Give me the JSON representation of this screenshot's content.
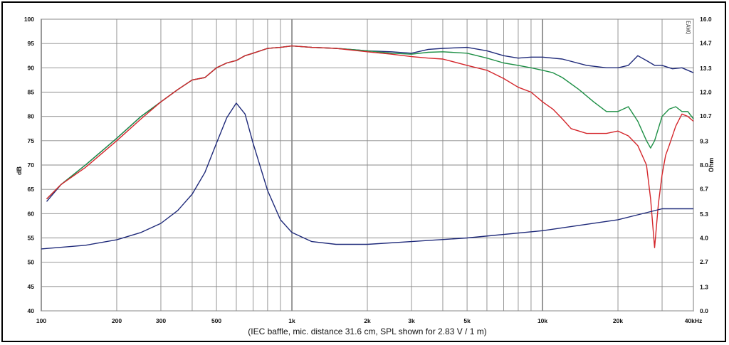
{
  "chart_data": {
    "type": "line",
    "caption": "(IEC baffle, mic. distance 31.6 cm, SPL shown for 2.83 V / 1 m)",
    "logo_text": "EAWQ",
    "xscale": "log",
    "xlim": [
      100,
      40000
    ],
    "x_tick_values": [
      100,
      200,
      300,
      500,
      1000,
      2000,
      3000,
      5000,
      10000,
      20000,
      40000
    ],
    "x_tick_labels": [
      "100",
      "200",
      "300",
      "500",
      "1k",
      "2k",
      "3k",
      "5k",
      "10k",
      "20k",
      "40kHz"
    ],
    "y_left": {
      "label": "dB",
      "lim": [
        40,
        100
      ],
      "ticks": [
        100,
        95,
        90,
        85,
        80,
        75,
        70,
        65,
        60,
        55,
        50,
        45,
        40
      ]
    },
    "y_right": {
      "label": "Ohm",
      "lim": [
        0,
        16
      ],
      "tick_values": [
        16,
        14.7,
        13.3,
        12,
        10.7,
        9.3,
        8,
        6.7,
        5.3,
        4,
        2.7,
        1.3,
        0
      ],
      "tick_labels": [
        "16.0",
        "14.7",
        "13.3",
        "12.0",
        "10.7",
        "9.3",
        "8.0",
        "6.7",
        "5.3",
        "4.0",
        "2.7",
        "1.3",
        "0.0"
      ]
    },
    "grid": true,
    "series": [
      {
        "axis": "left",
        "color": "#1f2a7a",
        "x": [
          105,
          120,
          150,
          200,
          250,
          300,
          350,
          400,
          450,
          500,
          550,
          600,
          650,
          700,
          800,
          900,
          1000,
          1200,
          1500,
          2000,
          2500,
          3000,
          3500,
          4000,
          5000,
          6000,
          7000,
          8000,
          9000,
          10000,
          12000,
          15000,
          18000,
          20000,
          22000,
          24000,
          26000,
          28000,
          30000,
          33000,
          36000,
          40000
        ],
        "y": [
          62.5,
          66,
          70,
          75.5,
          80,
          83,
          85.5,
          87.5,
          88,
          90,
          91,
          91.5,
          92.5,
          93,
          94,
          94.2,
          94.5,
          94.2,
          94,
          93.5,
          93.3,
          93,
          93.8,
          94,
          94.2,
          93.5,
          92.5,
          92,
          92.2,
          92.2,
          91.8,
          90.5,
          90,
          90,
          90.5,
          92.5,
          91.5,
          90.5,
          90.5,
          89.8,
          90,
          89
        ]
      },
      {
        "axis": "left",
        "color": "#1d8f45",
        "x": [
          105,
          120,
          150,
          200,
          250,
          300,
          350,
          400,
          450,
          500,
          550,
          600,
          650,
          700,
          800,
          900,
          1000,
          1200,
          1500,
          2000,
          2500,
          3000,
          3500,
          4000,
          5000,
          6000,
          7000,
          8000,
          9000,
          10000,
          11000,
          12000,
          14000,
          16000,
          18000,
          20000,
          22000,
          24000,
          26000,
          27000,
          28000,
          30000,
          32000,
          34000,
          36000,
          38000,
          40000
        ],
        "y": [
          63,
          66,
          70,
          75.5,
          80,
          83,
          85.5,
          87.5,
          88,
          90,
          91,
          91.5,
          92.5,
          93,
          94,
          94.2,
          94.5,
          94.2,
          94,
          93.5,
          93,
          92.8,
          93.2,
          93.3,
          93,
          92,
          91,
          90.5,
          90,
          89.5,
          89,
          88,
          85.5,
          83,
          81,
          81,
          82,
          79,
          75,
          73.5,
          75,
          80,
          81.5,
          82,
          81,
          81,
          79.5
        ]
      },
      {
        "axis": "left",
        "color": "#d4262b",
        "x": [
          105,
          120,
          150,
          200,
          250,
          300,
          350,
          400,
          450,
          500,
          550,
          600,
          650,
          700,
          800,
          900,
          1000,
          1200,
          1500,
          2000,
          2500,
          3000,
          3500,
          4000,
          5000,
          6000,
          7000,
          8000,
          9000,
          10000,
          11000,
          12000,
          13000,
          15000,
          18000,
          20000,
          22000,
          24000,
          26000,
          27000,
          28000,
          29000,
          30000,
          31000,
          32000,
          34000,
          36000,
          38000,
          40000
        ],
        "y": [
          63,
          66,
          69.5,
          75,
          79.5,
          83,
          85.5,
          87.5,
          88,
          90,
          91,
          91.5,
          92.5,
          93,
          94,
          94.2,
          94.5,
          94.2,
          94,
          93.3,
          92.8,
          92.3,
          92,
          91.8,
          90.5,
          89.5,
          87.8,
          86,
          85,
          83,
          81.5,
          79.5,
          77.5,
          76.5,
          76.5,
          77,
          76,
          74,
          70,
          63,
          53,
          62,
          68,
          72,
          74,
          78,
          80.5,
          80,
          79
        ]
      },
      {
        "axis": "right",
        "color": "#1f2a7a",
        "x": [
          100,
          150,
          200,
          250,
          300,
          350,
          400,
          450,
          500,
          550,
          600,
          650,
          700,
          800,
          900,
          1000,
          1200,
          1500,
          2000,
          3000,
          5000,
          10000,
          20000,
          30000,
          40000
        ],
        "y": [
          3.4,
          3.6,
          3.9,
          4.3,
          4.8,
          5.5,
          6.4,
          7.6,
          9.2,
          10.6,
          11.4,
          10.8,
          9.2,
          6.6,
          5.0,
          4.3,
          3.8,
          3.65,
          3.65,
          3.8,
          4.0,
          4.4,
          5.0,
          5.6,
          5.6
        ]
      }
    ]
  }
}
